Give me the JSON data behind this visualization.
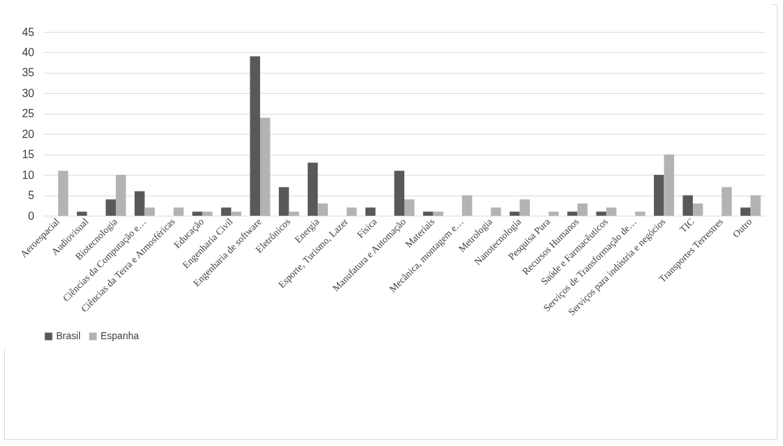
{
  "chart_data": {
    "type": "bar",
    "categories": [
      "Aeroespacial",
      "Audiovisual",
      "Biotecnologia",
      "Ciências da Computação e…",
      "Ciências da Terra e Atmosféricas",
      "Educação",
      "Engenharia Civil",
      "Engenharia de software",
      "Eletrônicos",
      "Energia",
      "Esporte, Turismo, Lazer",
      "Física",
      "Manufatura e Automação",
      "Materiais",
      "Mecânica, montagem e…",
      "Metrologia",
      "Nanotecnologia",
      "Pesquisa Pura",
      "Recursos Humanos",
      "Saúde e Farmacêuticos",
      "Serviços de Transformação de…",
      "Serviços para indústria e negócios",
      "TIC",
      "Transportes Terrestres",
      "Outro"
    ],
    "series": [
      {
        "name": "Brasil",
        "color": "#595959",
        "values": [
          0,
          1,
          4,
          6,
          0,
          1,
          2,
          39,
          7,
          13,
          0,
          2,
          11,
          1,
          0,
          0,
          1,
          0,
          1,
          1,
          0,
          10,
          5,
          0,
          2
        ]
      },
      {
        "name": "Espanha",
        "color": "#b3b3b3",
        "values": [
          11,
          0,
          10,
          2,
          2,
          1,
          1,
          24,
          1,
          3,
          2,
          0,
          4,
          1,
          5,
          2,
          4,
          1,
          3,
          2,
          1,
          15,
          3,
          7,
          5
        ]
      }
    ],
    "ylim": [
      0,
      45
    ],
    "yticks": [
      0,
      5,
      10,
      15,
      20,
      25,
      30,
      35,
      40,
      45
    ],
    "grid": "y",
    "legend": "bottom"
  }
}
